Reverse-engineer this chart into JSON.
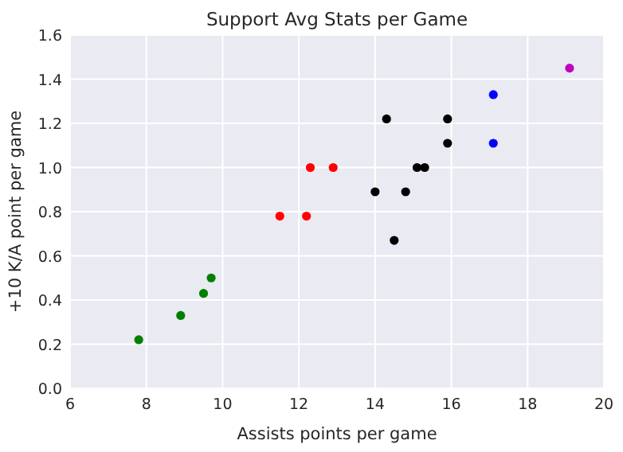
{
  "chart_data": {
    "type": "scatter",
    "title": "Support Avg Stats per Game",
    "xlabel": "Assists points per game",
    "ylabel": "+10 K/A point per game",
    "xlim": [
      6,
      20
    ],
    "ylim": [
      0,
      1.6
    ],
    "xticks": [
      6,
      8,
      10,
      12,
      14,
      16,
      18,
      20
    ],
    "yticks": [
      {
        "value": 0,
        "label": "0.0"
      },
      {
        "value": 0.2,
        "label": "0.2"
      },
      {
        "value": 0.4,
        "label": "0.4"
      },
      {
        "value": 0.6,
        "label": "0.6"
      },
      {
        "value": 0.8,
        "label": "0.8"
      },
      {
        "value": 1,
        "label": "1.0"
      },
      {
        "value": 1.2,
        "label": "1.2"
      },
      {
        "value": 1.4,
        "label": "1.4"
      },
      {
        "value": 1.6,
        "label": "1.6"
      }
    ],
    "grid": true,
    "marker": "circle",
    "series": [
      {
        "color": "#008000",
        "x": [
          7.8,
          8.9,
          9.5,
          9.7
        ],
        "values": [
          0.22,
          0.33,
          0.43,
          0.5
        ]
      },
      {
        "color": "#ff0000",
        "x": [
          11.5,
          12.2,
          12.3,
          12.9
        ],
        "values": [
          0.78,
          0.78,
          1.0,
          1.0
        ]
      },
      {
        "color": "#000000",
        "x": [
          14.3,
          15.9,
          15.9,
          15.1,
          15.3,
          14.0,
          14.8,
          14.5
        ],
        "values": [
          1.22,
          1.22,
          1.11,
          1.0,
          1.0,
          0.89,
          0.89,
          0.67
        ]
      },
      {
        "color": "#0000ff",
        "x": [
          17.1,
          17.1
        ],
        "values": [
          1.33,
          1.11
        ]
      },
      {
        "color": "#bf00bf",
        "x": [
          19.1
        ],
        "values": [
          1.45
        ]
      }
    ]
  }
}
